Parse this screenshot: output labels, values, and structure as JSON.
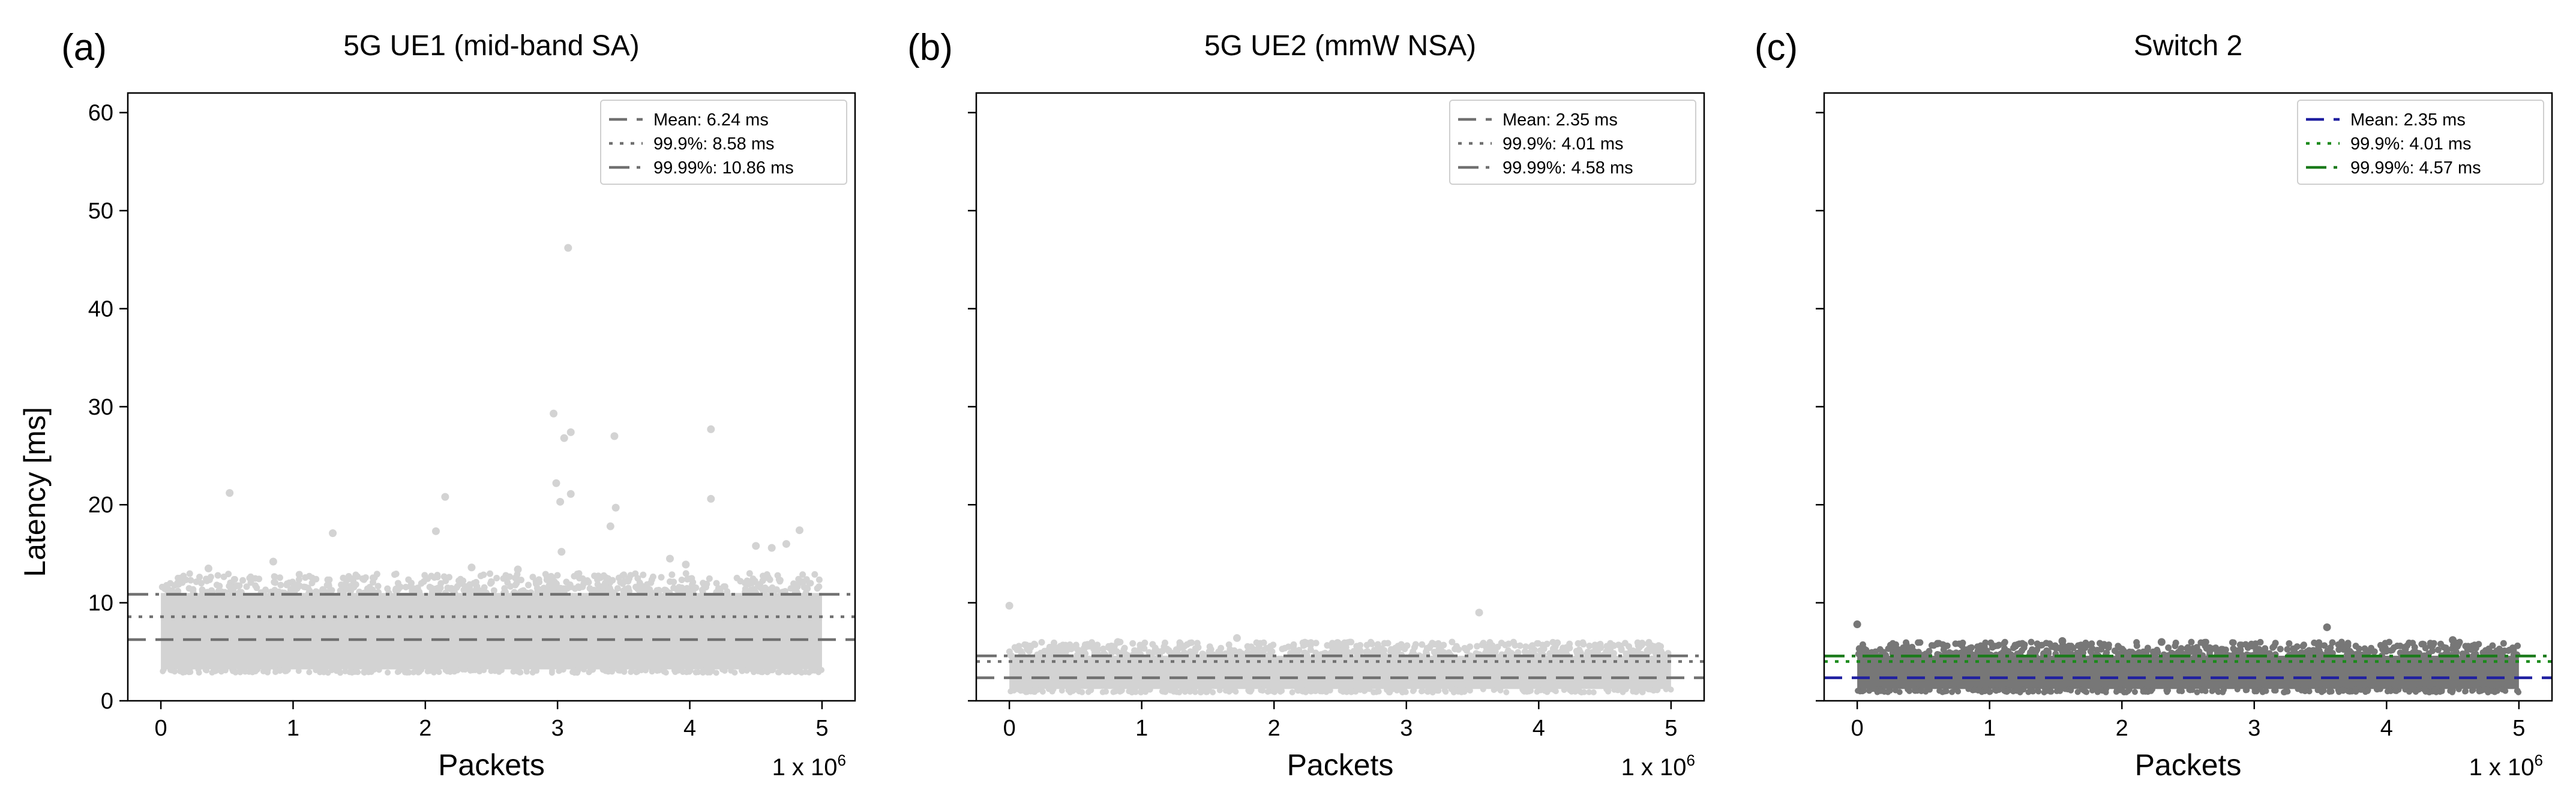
{
  "figure": {
    "ylabel": "Latency [ms]",
    "xlabel": "Packets",
    "x_multiplier": "1 x 10",
    "x_multiplier_exp": "6"
  },
  "chart_data": [
    {
      "type": "scatter",
      "panel_label": "(a)",
      "title": "5G UE1 (mid-band SA)",
      "xlabel": "Packets",
      "ylabel": "Latency [ms]",
      "xlim": [
        -0.25,
        5.25
      ],
      "ylim": [
        0,
        62
      ],
      "x_ticks": [
        0,
        1,
        2,
        3,
        4,
        5
      ],
      "y_ticks": [
        0,
        10,
        20,
        30,
        40,
        50,
        60
      ],
      "grid": false,
      "legend_position": "top-right",
      "point_color": "#d3d3d3",
      "dense_band": {
        "x_range": [
          0,
          5
        ],
        "y_range": [
          3.2,
          11.0
        ]
      },
      "band_top_jitter": [
        11.5,
        13.0
      ],
      "outliers": [
        {
          "x": 0.52,
          "y": 21.2
        },
        {
          "x": 1.3,
          "y": 17.1
        },
        {
          "x": 2.08,
          "y": 17.3
        },
        {
          "x": 2.15,
          "y": 20.8
        },
        {
          "x": 2.35,
          "y": 13.6
        },
        {
          "x": 2.97,
          "y": 29.3
        },
        {
          "x": 2.99,
          "y": 22.2
        },
        {
          "x": 3.02,
          "y": 20.3
        },
        {
          "x": 3.05,
          "y": 26.8
        },
        {
          "x": 3.08,
          "y": 46.2
        },
        {
          "x": 3.1,
          "y": 27.4
        },
        {
          "x": 3.1,
          "y": 21.1
        },
        {
          "x": 3.03,
          "y": 15.2
        },
        {
          "x": 3.4,
          "y": 17.8
        },
        {
          "x": 3.43,
          "y": 27.0
        },
        {
          "x": 3.44,
          "y": 19.7
        },
        {
          "x": 3.85,
          "y": 14.5
        },
        {
          "x": 4.16,
          "y": 27.7
        },
        {
          "x": 4.16,
          "y": 20.6
        },
        {
          "x": 4.5,
          "y": 15.8
        },
        {
          "x": 4.62,
          "y": 15.6
        },
        {
          "x": 4.73,
          "y": 16.0
        },
        {
          "x": 4.83,
          "y": 17.4
        },
        {
          "x": 3.97,
          "y": 13.9
        },
        {
          "x": 2.7,
          "y": 13.4
        },
        {
          "x": 0.36,
          "y": 13.5
        },
        {
          "x": 0.85,
          "y": 14.2
        }
      ],
      "reference_lines": [
        {
          "name": "Mean: 6.24 ms",
          "value": 6.24,
          "style": "dashed",
          "color": "#707070"
        },
        {
          "name": "99.9%: 8.58 ms",
          "value": 8.58,
          "style": "dotted",
          "color": "#707070"
        },
        {
          "name": "99.99%: 10.86 ms",
          "value": 10.86,
          "style": "dashdot",
          "color": "#707070"
        }
      ]
    },
    {
      "type": "scatter",
      "panel_label": "(b)",
      "title": "5G UE2 (mmW NSA)",
      "xlabel": "Packets",
      "ylabel": "",
      "xlim": [
        -0.25,
        5.25
      ],
      "ylim": [
        0,
        62
      ],
      "x_ticks": [
        0,
        1,
        2,
        3,
        4,
        5
      ],
      "y_ticks": [
        0,
        10,
        20,
        30,
        40,
        50,
        60
      ],
      "grid": false,
      "legend_position": "top-right",
      "point_color": "#d3d3d3",
      "dense_band": {
        "x_range": [
          0.0,
          5
        ],
        "y_range": [
          1.2,
          4.6
        ]
      },
      "band_top_jitter": [
        4.8,
        6.0
      ],
      "outliers": [
        {
          "x": 0.0,
          "y": 9.7
        },
        {
          "x": 3.55,
          "y": 9.0
        },
        {
          "x": 1.72,
          "y": 6.4
        },
        {
          "x": 0.82,
          "y": 6.0
        },
        {
          "x": 2.48,
          "y": 5.9
        }
      ],
      "reference_lines": [
        {
          "name": "Mean: 2.35 ms",
          "value": 2.35,
          "style": "dashed",
          "color": "#707070"
        },
        {
          "name": "99.9%: 4.01 ms",
          "value": 4.01,
          "style": "dotted",
          "color": "#707070"
        },
        {
          "name": "99.99%: 4.58 ms",
          "value": 4.58,
          "style": "dashdot",
          "color": "#707070"
        }
      ]
    },
    {
      "type": "scatter",
      "panel_label": "(c)",
      "title": "Switch 2",
      "xlabel": "Packets",
      "ylabel": "",
      "xlim": [
        -0.25,
        5.25
      ],
      "ylim": [
        0,
        62
      ],
      "x_ticks": [
        0,
        1,
        2,
        3,
        4,
        5
      ],
      "y_ticks": [
        0,
        10,
        20,
        30,
        40,
        50,
        60
      ],
      "grid": false,
      "legend_position": "top-right",
      "point_color": "#777777",
      "dense_band": {
        "x_range": [
          0.0,
          5
        ],
        "y_range": [
          1.2,
          4.6
        ]
      },
      "band_top_jitter": [
        4.8,
        6.0
      ],
      "outliers": [
        {
          "x": 0.0,
          "y": 7.8
        },
        {
          "x": 3.55,
          "y": 7.5
        },
        {
          "x": 1.55,
          "y": 6.1
        },
        {
          "x": 4.5,
          "y": 6.2
        },
        {
          "x": 2.3,
          "y": 6.0
        }
      ],
      "reference_lines": [
        {
          "name": "Mean: 2.35 ms",
          "value": 2.35,
          "style": "dashed",
          "color": "#1f1fa0"
        },
        {
          "name": "99.9%: 4.01 ms",
          "value": 4.01,
          "style": "dotted",
          "color": "#1a8a1a"
        },
        {
          "name": "99.99%: 4.57 ms",
          "value": 4.57,
          "style": "dashdot",
          "color": "#1a7a1a"
        }
      ]
    }
  ]
}
